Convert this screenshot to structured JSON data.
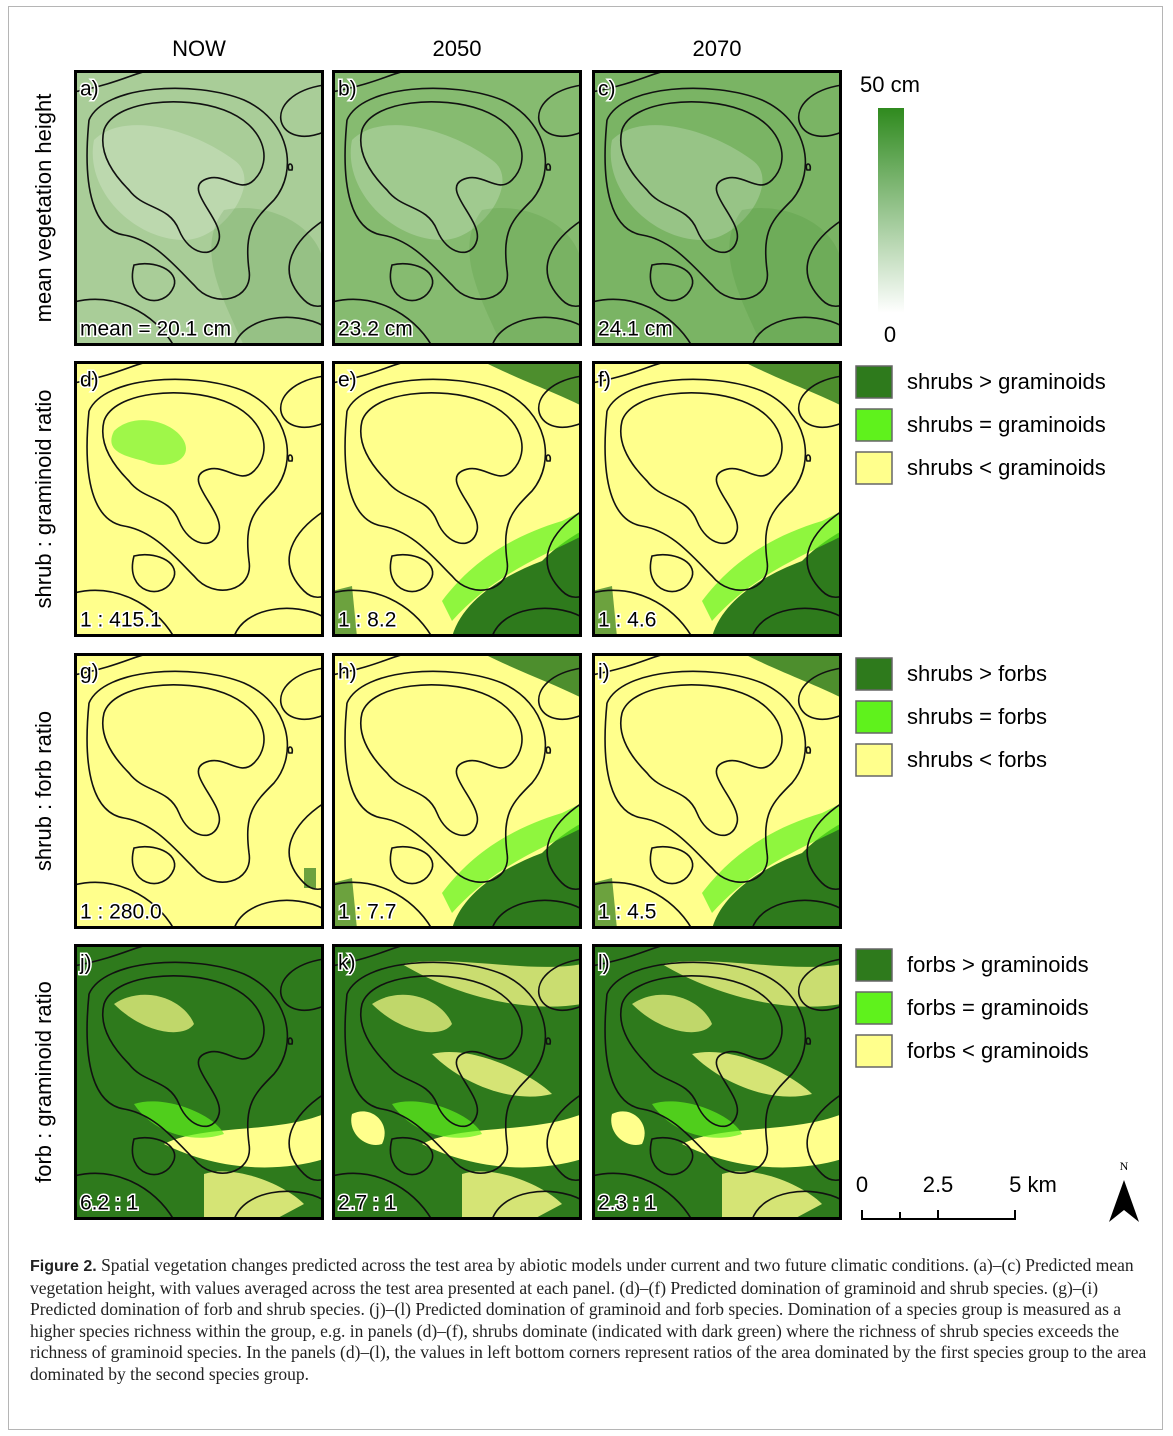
{
  "columns": [
    "NOW",
    "2050",
    "2070"
  ],
  "rows": [
    {
      "label": "mean vegetation height",
      "panels": [
        {
          "letter": "a)",
          "note": "mean = 20.1 cm"
        },
        {
          "letter": "b)",
          "note": "23.2 cm"
        },
        {
          "letter": "c)",
          "note": "24.1 cm"
        }
      ],
      "legend": {
        "max": "50 cm",
        "min": "0"
      }
    },
    {
      "label": "shrub : graminoid ratio",
      "panels": [
        {
          "letter": "d)",
          "note": "1 : 415.1"
        },
        {
          "letter": "e)",
          "note": "1 : 8.2"
        },
        {
          "letter": "f)",
          "note": "1 : 4.6"
        }
      ],
      "legend": [
        "shrubs > graminoids",
        "shrubs = graminoids",
        "shrubs < graminoids"
      ]
    },
    {
      "label": "shrub : forb ratio",
      "panels": [
        {
          "letter": "g)",
          "note": "1 : 280.0"
        },
        {
          "letter": "h)",
          "note": "1 : 7.7"
        },
        {
          "letter": "i)",
          "note": "1 : 4.5"
        }
      ],
      "legend": [
        "shrubs > forbs",
        "shrubs = forbs",
        "shrubs < forbs"
      ]
    },
    {
      "label": "forb : graminoid ratio",
      "panels": [
        {
          "letter": "j)",
          "note": "6.2 : 1"
        },
        {
          "letter": "k)",
          "note": "2.7 : 1"
        },
        {
          "letter": "l)",
          "note": "2.3 : 1"
        }
      ],
      "legend": [
        "forbs > graminoids",
        "forbs = graminoids",
        "forbs < graminoids"
      ]
    }
  ],
  "scale_bar": [
    "0",
    "2.5",
    "5 km"
  ],
  "north": "N",
  "caption": {
    "label": "Figure 2.",
    "text": "Spatial vegetation changes predicted across the test area by abiotic models under current and two future climatic conditions. (a)–(c) Predicted mean vegetation height, with values averaged across the test area presented at each panel. (d)–(f) Predicted domination of graminoid and shrub species. (g)–(i) Predicted domination of forb and shrub species. (j)–(l) Predicted domination of graminoid and forb species. Domination of a species group is measured as a higher species richness within the group, e.g. in panels (d)–(f), shrubs dominate (indicated with dark green) where the richness of shrub species exceeds the richness of graminoid species. In the panels (d)–(l), the values in left bottom corners represent ratios of the area dominated by the first species group to the area dominated by the second species group."
  }
}
